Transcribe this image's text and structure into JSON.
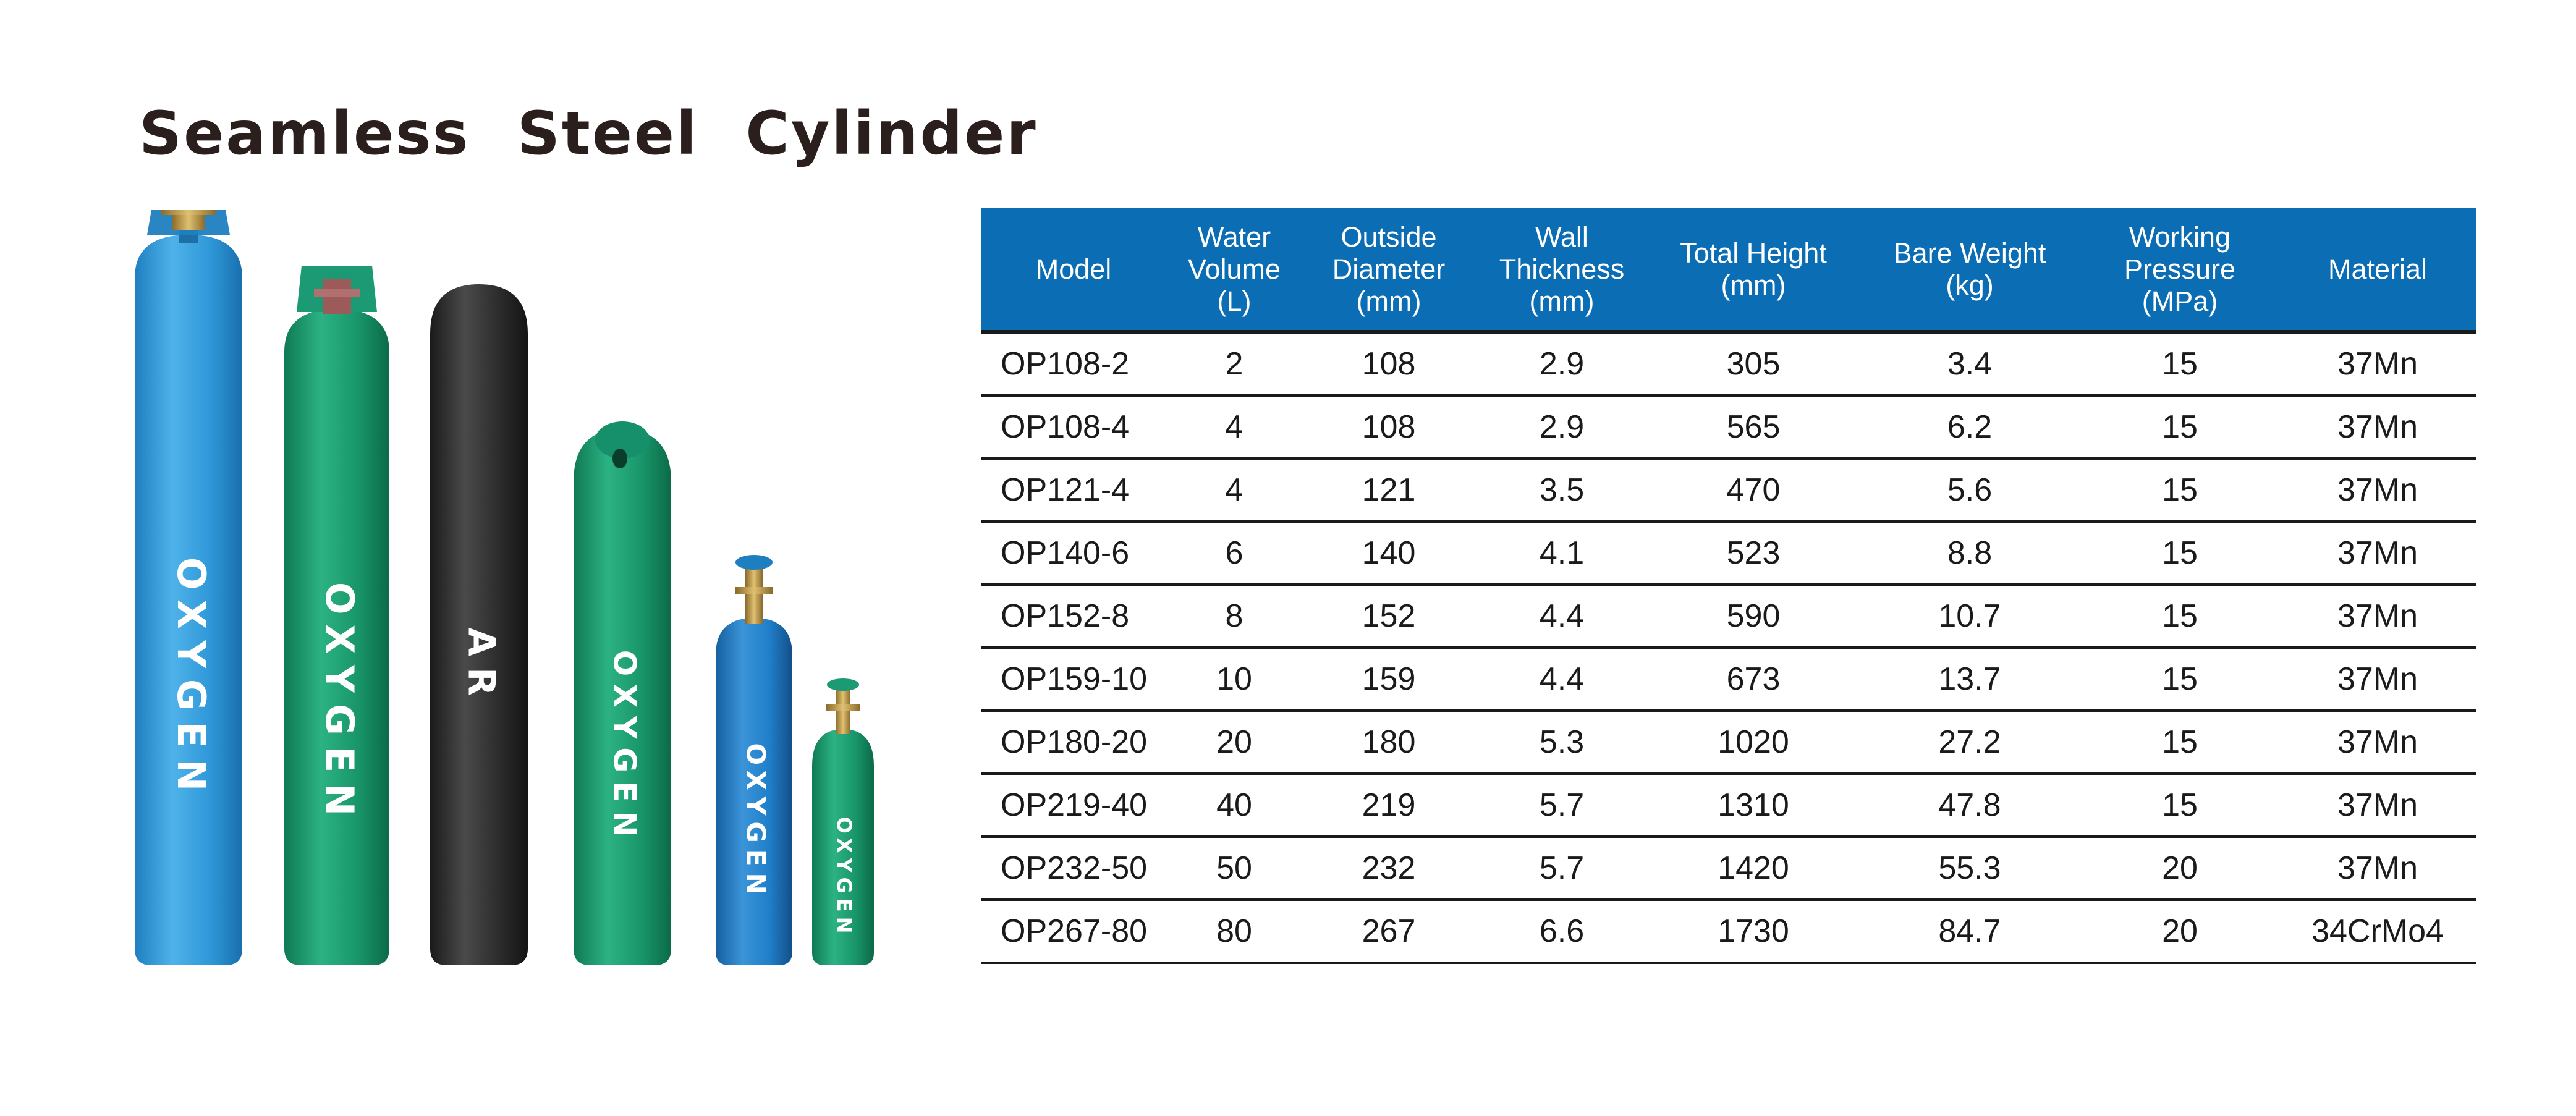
{
  "title": "Seamless Steel Cylinder",
  "cylinders": [
    {
      "label": "OXYGEN",
      "color": "#2f98d8",
      "valve_color": "#1e7fc0"
    },
    {
      "label": "OXYGEN",
      "color": "#18966a",
      "valve_color": "#1b9a73"
    },
    {
      "label": "AR",
      "color": "#2c2c2c"
    },
    {
      "label": "OXYGEN",
      "color": "#18966a"
    },
    {
      "label": "OXYGEN",
      "color": "#1f7fc9",
      "valve_color": "#1e7fc0"
    },
    {
      "label": "OXYGEN",
      "color": "#18966a",
      "valve_color": "#1b9a73"
    }
  ],
  "colors": {
    "header_bg": "#0b6db4",
    "header_text": "#ffffff",
    "rule": "#1a1a1a"
  },
  "table": {
    "headers": [
      "Model",
      "Water\nVolume\n(L)",
      "Outside\nDiameter\n(mm)",
      "Wall\nThickness\n(mm)",
      "Total Height\n(mm)",
      "Bare Weight\n(kg)",
      "Working\nPressure\n(MPa)",
      "Material"
    ],
    "rows": [
      [
        "OP108-2",
        "2",
        "108",
        "2.9",
        "305",
        "3.4",
        "15",
        "37Mn"
      ],
      [
        "OP108-4",
        "4",
        "108",
        "2.9",
        "565",
        "6.2",
        "15",
        "37Mn"
      ],
      [
        "OP121-4",
        "4",
        "121",
        "3.5",
        "470",
        "5.6",
        "15",
        "37Mn"
      ],
      [
        "OP140-6",
        "6",
        "140",
        "4.1",
        "523",
        "8.8",
        "15",
        "37Mn"
      ],
      [
        "OP152-8",
        "8",
        "152",
        "4.4",
        "590",
        "10.7",
        "15",
        "37Mn"
      ],
      [
        "OP159-10",
        "10",
        "159",
        "4.4",
        "673",
        "13.7",
        "15",
        "37Mn"
      ],
      [
        "OP180-20",
        "20",
        "180",
        "5.3",
        "1020",
        "27.2",
        "15",
        "37Mn"
      ],
      [
        "OP219-40",
        "40",
        "219",
        "5.7",
        "1310",
        "47.8",
        "15",
        "37Mn"
      ],
      [
        "OP232-50",
        "50",
        "232",
        "5.7",
        "1420",
        "55.3",
        "20",
        "37Mn"
      ],
      [
        "OP267-80",
        "80",
        "267",
        "6.6",
        "1730",
        "84.7",
        "20",
        "34CrMo4"
      ]
    ]
  }
}
